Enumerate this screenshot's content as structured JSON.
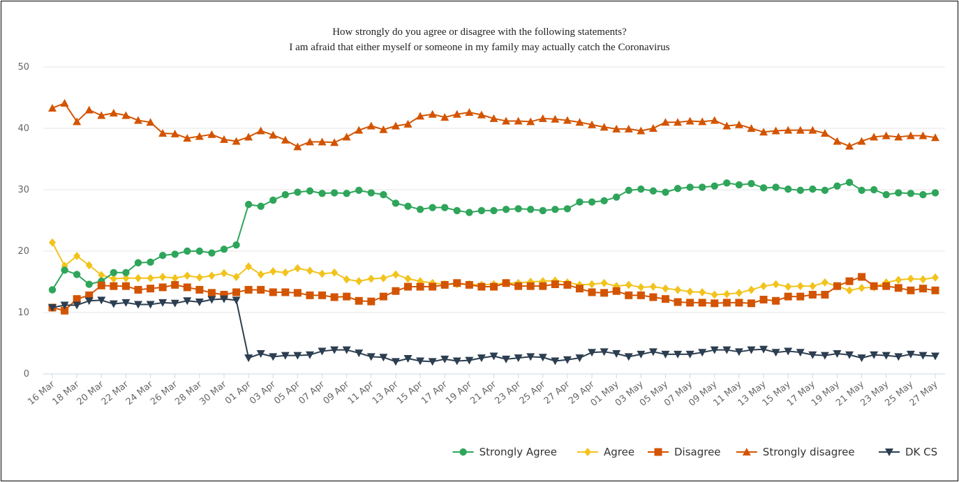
{
  "chart_data": {
    "type": "line",
    "title": "How strongly do you agree or disagree with the following statements?",
    "subtitle": "I am afraid that either myself or someone in my family may actually catch the Coronavirus",
    "xlabel": "",
    "ylabel": "",
    "ylim": [
      0,
      50
    ],
    "y_ticks": [
      0,
      10,
      20,
      30,
      40,
      50
    ],
    "grid": true,
    "legend_position": "bottom-right",
    "x": [
      "16 Mar",
      "17 Mar",
      "18 Mar",
      "19 Mar",
      "20 Mar",
      "21 Mar",
      "22 Mar",
      "23 Mar",
      "24 Mar",
      "25 Mar",
      "26 Mar",
      "27 Mar",
      "28 Mar",
      "29 Mar",
      "30 Mar",
      "31 Mar",
      "01 Apr",
      "02 Apr",
      "03 Apr",
      "04 Apr",
      "05 Apr",
      "06 Apr",
      "07 Apr",
      "08 Apr",
      "09 Apr",
      "10 Apr",
      "11 Apr",
      "12 Apr",
      "13 Apr",
      "14 Apr",
      "15 Apr",
      "16 Apr",
      "17 Apr",
      "18 Apr",
      "19 Apr",
      "20 Apr",
      "21 Apr",
      "22 Apr",
      "23 Apr",
      "24 Apr",
      "25 Apr",
      "26 Apr",
      "27 Apr",
      "28 Apr",
      "29 Apr",
      "30 Apr",
      "01 May",
      "02 May",
      "03 May",
      "04 May",
      "05 May",
      "06 May",
      "07 May",
      "08 May",
      "09 May",
      "10 May",
      "11 May",
      "12 May",
      "13 May",
      "14 May",
      "15 May",
      "16 May",
      "17 May",
      "18 May",
      "19 May",
      "20 May",
      "21 May",
      "22 May",
      "23 May",
      "24 May",
      "25 May",
      "26 May",
      "27 May"
    ],
    "x_tick_labels": [
      "16 Mar",
      "18 Mar",
      "20 Mar",
      "22 Mar",
      "24 Mar",
      "26 Mar",
      "28 Mar",
      "30 Mar",
      "01 Apr",
      "03 Apr",
      "05 Apr",
      "07 Apr",
      "09 Apr",
      "11 Apr",
      "13 Apr",
      "15 Apr",
      "17 Apr",
      "19 Apr",
      "21 Apr",
      "23 Apr",
      "25 Apr",
      "27 Apr",
      "29 Apr",
      "01 May",
      "03 May",
      "05 May",
      "07 May",
      "09 May",
      "11 May",
      "13 May",
      "15 May",
      "17 May",
      "19 May",
      "21 May",
      "23 May",
      "25 May",
      "27 May"
    ],
    "series": [
      {
        "name": "Strongly Agree",
        "color": "#2ea55a",
        "marker": "circle",
        "values": [
          13.7,
          16.9,
          16.2,
          14.6,
          15.1,
          16.5,
          16.5,
          18.1,
          18.2,
          19.3,
          19.5,
          20,
          20,
          19.7,
          20.3,
          21,
          27.6,
          27.3,
          28.3,
          29.2,
          29.6,
          29.8,
          29.4,
          29.5,
          29.4,
          29.9,
          29.5,
          29.2,
          27.8,
          27.3,
          26.8,
          27.1,
          27.1,
          26.6,
          26.3,
          26.6,
          26.6,
          26.8,
          26.9,
          26.8,
          26.6,
          26.8,
          26.9,
          28,
          28,
          28.2,
          28.8,
          29.9,
          30.1,
          29.8,
          29.6,
          30.2,
          30.4,
          30.4,
          30.6,
          31.1,
          30.8,
          31,
          30.3,
          30.4,
          30.1,
          29.9,
          30.1,
          29.9,
          30.6,
          31.2,
          29.9,
          30,
          29.2,
          29.5,
          29.4,
          29.2,
          29.5
        ]
      },
      {
        "name": "Agree",
        "color": "#f2c31c",
        "marker": "diamond",
        "values": [
          21.4,
          17.6,
          19.2,
          17.7,
          16.1,
          15.5,
          15.6,
          15.6,
          15.6,
          15.8,
          15.6,
          16,
          15.7,
          16,
          16.4,
          15.8,
          17.5,
          16.2,
          16.7,
          16.5,
          17.2,
          16.8,
          16.3,
          16.5,
          15.4,
          15.1,
          15.5,
          15.6,
          16.2,
          15.5,
          15.1,
          14.8,
          14.6,
          14.6,
          14.6,
          14.5,
          14.6,
          14.8,
          14.8,
          15,
          15.1,
          15.2,
          14.9,
          14.5,
          14.6,
          14.8,
          14.3,
          14.5,
          14.1,
          14.2,
          13.9,
          13.7,
          13.4,
          13.3,
          12.9,
          13,
          13.2,
          13.7,
          14.3,
          14.6,
          14.2,
          14.3,
          14.3,
          14.9,
          14.3,
          13.6,
          14,
          14.1,
          14.9,
          15.3,
          15.5,
          15.4,
          15.7
        ]
      },
      {
        "name": "Disagree",
        "color": "#d35400",
        "marker": "square",
        "values": [
          10.8,
          10.3,
          12.2,
          12.8,
          14.4,
          14.3,
          14.3,
          13.7,
          13.9,
          14.1,
          14.5,
          14.1,
          13.7,
          13.2,
          12.9,
          13.3,
          13.7,
          13.7,
          13.3,
          13.3,
          13.2,
          12.8,
          12.8,
          12.5,
          12.6,
          11.9,
          11.8,
          12.6,
          13.5,
          14.2,
          14.2,
          14.2,
          14.5,
          14.8,
          14.5,
          14.2,
          14.2,
          14.8,
          14.3,
          14.3,
          14.3,
          14.6,
          14.5,
          13.9,
          13.3,
          13.2,
          13.5,
          12.8,
          12.8,
          12.5,
          12.2,
          11.7,
          11.6,
          11.6,
          11.5,
          11.6,
          11.6,
          11.5,
          12.1,
          11.9,
          12.6,
          12.6,
          12.9,
          12.9,
          14.3,
          15.1,
          15.8,
          14.3,
          14.3,
          14,
          13.6,
          13.9,
          13.6
        ]
      },
      {
        "name": "Strongly disagree",
        "color": "#d35400",
        "marker": "triangle-up",
        "values": [
          43.3,
          44.1,
          41.1,
          43,
          42.1,
          42.5,
          42.1,
          41.3,
          41,
          39.2,
          39.1,
          38.4,
          38.7,
          39,
          38.2,
          37.9,
          38.6,
          39.6,
          38.9,
          38.1,
          37,
          37.8,
          37.8,
          37.7,
          38.6,
          39.7,
          40.4,
          39.8,
          40.4,
          40.7,
          42,
          42.3,
          41.8,
          42.3,
          42.6,
          42.2,
          41.6,
          41.2,
          41.2,
          41.1,
          41.6,
          41.5,
          41.3,
          41,
          40.6,
          40.2,
          39.9,
          39.9,
          39.6,
          40,
          41,
          41,
          41.2,
          41.1,
          41.3,
          40.4,
          40.6,
          40,
          39.4,
          39.6,
          39.7,
          39.7,
          39.7,
          39.2,
          37.9,
          37.1,
          37.9,
          38.6,
          38.8,
          38.6,
          38.8,
          38.8,
          38.5
        ]
      },
      {
        "name": "DK CS",
        "color": "#2c3e50",
        "marker": "triangle-down",
        "values": [
          10.8,
          11.2,
          11.2,
          11.9,
          12,
          11.4,
          11.6,
          11.3,
          11.3,
          11.6,
          11.5,
          11.9,
          11.7,
          12.1,
          12.2,
          12,
          2.6,
          3.3,
          2.8,
          3,
          3,
          3.1,
          3.7,
          3.9,
          3.9,
          3.4,
          2.8,
          2.7,
          2,
          2.5,
          2.1,
          2,
          2.4,
          2.1,
          2.2,
          2.6,
          2.9,
          2.4,
          2.6,
          2.8,
          2.7,
          2.1,
          2.3,
          2.6,
          3.5,
          3.6,
          3.3,
          2.8,
          3.2,
          3.6,
          3.2,
          3.2,
          3.2,
          3.5,
          3.9,
          3.9,
          3.6,
          3.9,
          4,
          3.5,
          3.7,
          3.5,
          3.1,
          3,
          3.3,
          3.1,
          2.6,
          3.1,
          3,
          2.8,
          3.2,
          3,
          2.9
        ]
      }
    ]
  }
}
